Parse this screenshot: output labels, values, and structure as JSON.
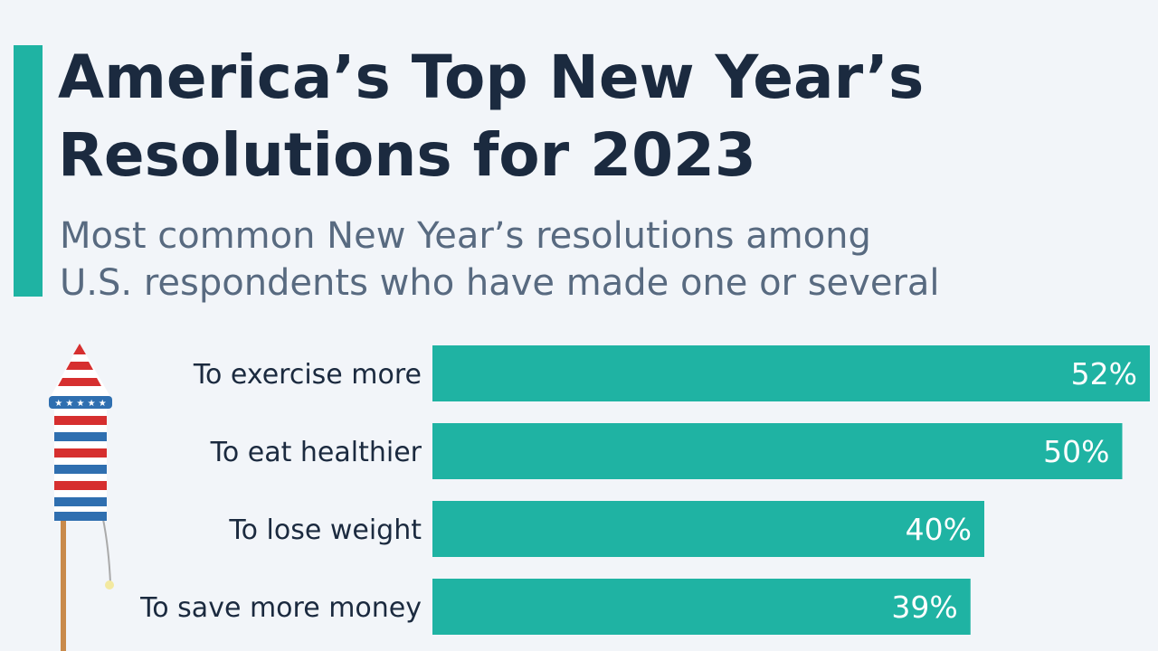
{
  "chart_data": {
    "type": "bar",
    "orientation": "horizontal",
    "title": [
      "America’s Top New Year’s",
      "Resolutions for 2023"
    ],
    "subtitle": [
      "Most common New Year’s resolutions among",
      "U.S. respondents who have made one or several"
    ],
    "categories": [
      "To exercise more",
      "To eat healthier",
      "To lose weight",
      "To save more money"
    ],
    "values": [
      52,
      50,
      40,
      39
    ],
    "value_labels": [
      "52%",
      "50%",
      "40%",
      "39%"
    ],
    "color": "#1fb3a3"
  }
}
